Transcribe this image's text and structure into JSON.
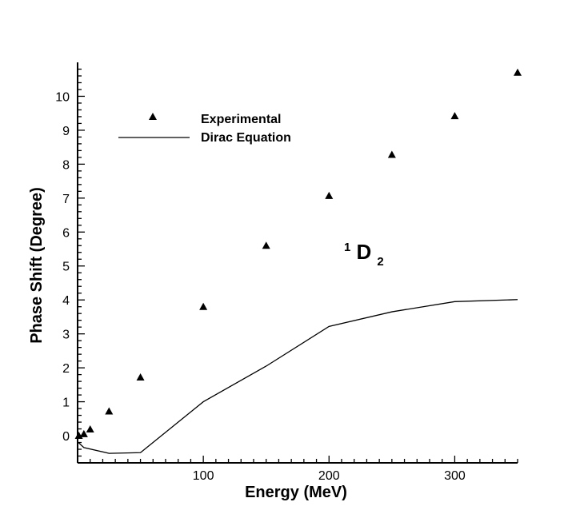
{
  "chart_data": {
    "type": "line",
    "title": "",
    "xlabel": "Energy (MeV)",
    "ylabel": "Phase Shift (Degree)",
    "xlim": [
      0,
      350
    ],
    "ylim": [
      -0.8,
      11
    ],
    "x_ticks": [
      100,
      200,
      300
    ],
    "y_ticks": [
      0,
      1,
      2,
      3,
      4,
      5,
      6,
      7,
      8,
      9,
      10
    ],
    "grid": false,
    "legend_position": "top-left",
    "series": [
      {
        "name": "Experimental",
        "style": "triangle-markers",
        "x": [
          1,
          5,
          10,
          25,
          50,
          100,
          150,
          200,
          250,
          300,
          350
        ],
        "y": [
          0.0,
          0.05,
          0.19,
          0.72,
          1.72,
          3.8,
          5.6,
          7.07,
          8.28,
          9.42,
          10.7
        ]
      },
      {
        "name": "Dirac Equation",
        "style": "solid-line",
        "x": [
          0,
          5,
          25,
          50,
          100,
          150,
          200,
          250,
          300,
          350
        ],
        "y": [
          -0.18,
          -0.35,
          -0.52,
          -0.5,
          1.0,
          2.05,
          3.22,
          3.65,
          3.95,
          4.01
        ]
      }
    ],
    "annotation": {
      "superscript": "1",
      "main": "D",
      "subscript": "2",
      "x": 222,
      "y": 5.2
    }
  },
  "colors": {
    "axis": "#000000",
    "marker": "#000000",
    "line": "#000000",
    "background": "#ffffff"
  }
}
